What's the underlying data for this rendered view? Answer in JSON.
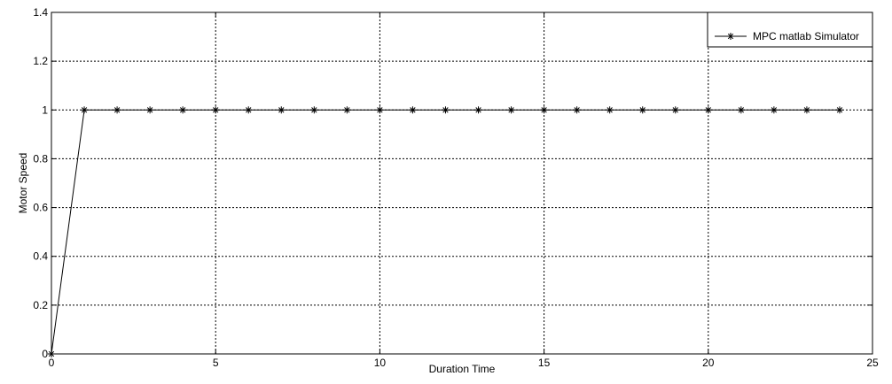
{
  "chart_data": {
    "type": "line",
    "title": "",
    "xlabel": "Duration Time",
    "ylabel": "Motor Speed",
    "xlim": [
      0,
      25
    ],
    "ylim": [
      0,
      1.4
    ],
    "x_ticks": [
      "0",
      "5",
      "10",
      "15",
      "20",
      "25"
    ],
    "y_ticks": [
      "0",
      "0.2",
      "0.4",
      "0.6",
      "0.8",
      "1",
      "1.2",
      "1.4"
    ],
    "grid": true,
    "grid_style": "dotted",
    "legend_position": "top-right",
    "series": [
      {
        "name": "MPC matlab Simulator",
        "color": "#000000",
        "marker": "asterisk",
        "x": [
          0,
          1,
          2,
          3,
          4,
          5,
          6,
          7,
          8,
          9,
          10,
          11,
          12,
          13,
          14,
          15,
          16,
          17,
          18,
          19,
          20,
          21,
          22,
          23,
          24
        ],
        "y": [
          0,
          1,
          1,
          1,
          1,
          1,
          1,
          1,
          1,
          1,
          1,
          1,
          1,
          1,
          1,
          1,
          1,
          1,
          1,
          1,
          1,
          1,
          1,
          1,
          1
        ]
      }
    ]
  }
}
